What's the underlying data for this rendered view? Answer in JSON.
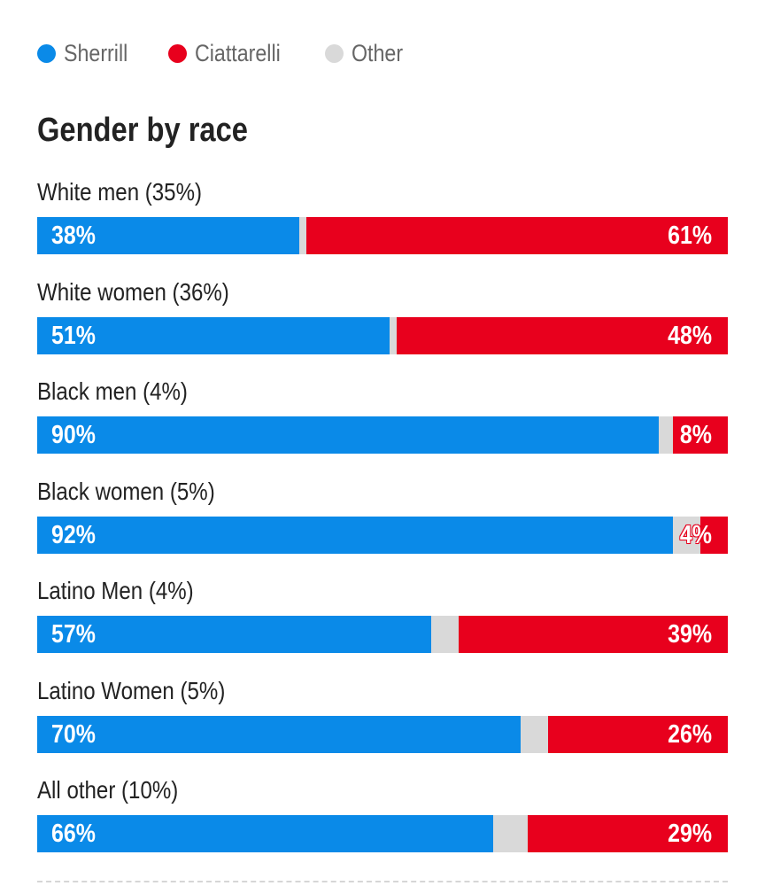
{
  "legend": [
    {
      "label": "Sherrill",
      "color": "#0a8ae8"
    },
    {
      "label": "Ciattarelli",
      "color": "#e8001d"
    },
    {
      "label": "Other",
      "color": "#d9d9d9"
    }
  ],
  "chart_data": {
    "type": "bar",
    "orientation": "horizontal-stacked",
    "title": "Gender by race",
    "categories": [
      "White men (35%)",
      "White women (36%)",
      "Black men (4%)",
      "Black women (5%)",
      "Latino Men (4%)",
      "Latino Women (5%)",
      "All other (10%)"
    ],
    "series": [
      {
        "name": "Sherrill",
        "color": "#0a8ae8",
        "values": [
          38,
          51,
          90,
          92,
          57,
          70,
          66
        ],
        "labels": [
          "38%",
          "51%",
          "90%",
          "92%",
          "57%",
          "70%",
          "66%"
        ]
      },
      {
        "name": "Other",
        "color": "#d9d9d9",
        "values": [
          1,
          1,
          2,
          4,
          4,
          4,
          5
        ]
      },
      {
        "name": "Ciattarelli",
        "color": "#e8001d",
        "values": [
          61,
          48,
          8,
          4,
          39,
          26,
          29
        ],
        "labels": [
          "61%",
          "48%",
          "8%",
          "4%",
          "39%",
          "26%",
          "29%"
        ]
      }
    ],
    "xlim": [
      0,
      100
    ]
  }
}
